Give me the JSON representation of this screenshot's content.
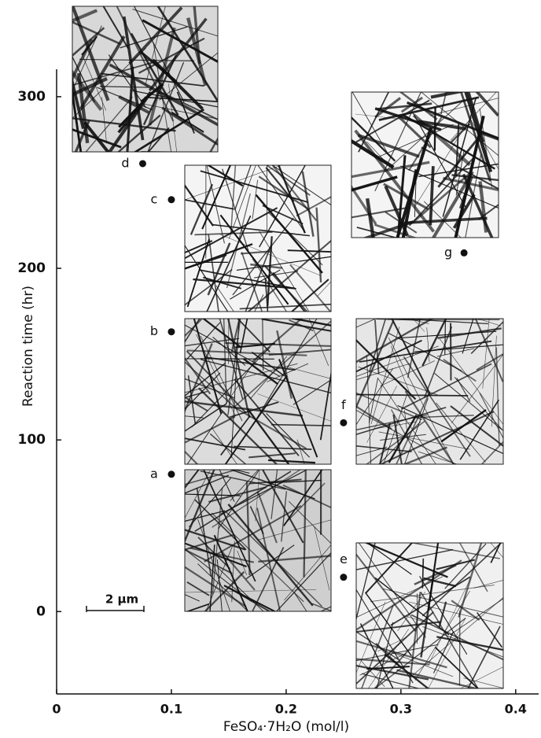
{
  "chart_data": {
    "type": "scatter",
    "xlabel": "FeSO₄·7H₂O (mol/l)",
    "ylabel": "Reaction time (hr)",
    "labels": [
      "a",
      "b",
      "c",
      "d",
      "e",
      "f",
      "g"
    ],
    "x": [
      0.1,
      0.1,
      0.1,
      0.075,
      0.25,
      0.25,
      0.355
    ],
    "y": [
      80,
      163,
      240,
      261,
      20,
      110,
      209
    ],
    "color": "#111111",
    "xlim": [
      0,
      0.42
    ],
    "ylim": [
      -48,
      316
    ],
    "xticks": [
      0,
      0.1,
      0.2,
      0.3,
      0.4
    ],
    "yticks": [
      0,
      100,
      200,
      300
    ],
    "scale_bar": "2 μm"
  }
}
